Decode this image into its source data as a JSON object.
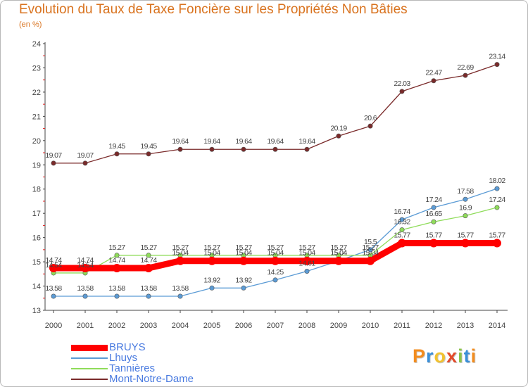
{
  "chart_data": {
    "type": "line",
    "title": "Evolution du Taux de Taxe Foncière sur les Propriétés Non Bâties",
    "ylabel": "(en %)",
    "xlabel": "",
    "ylim": [
      13,
      24
    ],
    "yticks": [
      "13",
      "14",
      "15",
      "16",
      "17",
      "18",
      "19",
      "20",
      "21",
      "22",
      "23",
      "24"
    ],
    "categories": [
      "2000",
      "2001",
      "2002",
      "2003",
      "2004",
      "2005",
      "2006",
      "2007",
      "2008",
      "2009",
      "2010",
      "2011",
      "2012",
      "2013",
      "2014"
    ],
    "series": [
      {
        "name": "BRUYS",
        "color": "#ff0000",
        "values": [
          14.74,
          14.74,
          14.74,
          14.74,
          15.04,
          15.04,
          15.04,
          15.04,
          15.04,
          15.04,
          15.04,
          15.77,
          15.77,
          15.77,
          15.77
        ],
        "labels": [
          "14.74",
          "14.74",
          "14.74",
          "14.74",
          "15.04",
          "15.04",
          "15.04",
          "15.04",
          "15.04",
          "15.04",
          "15.04",
          "15.77",
          "15.77",
          "15.77",
          "15.77"
        ]
      },
      {
        "name": "Lhuys",
        "color": "#5b9bd5",
        "values": [
          13.58,
          13.58,
          13.58,
          13.58,
          13.58,
          13.92,
          13.92,
          14.25,
          14.61,
          15.04,
          15.5,
          16.74,
          17.24,
          17.58,
          18.02
        ],
        "labels": [
          "13.58",
          "13.58",
          "13.58",
          "13.58",
          "13.58",
          "13.92",
          "13.92",
          "14.25",
          "14.61",
          "15.04",
          "15.5",
          "16.74",
          "17.24",
          "17.58",
          "18.02"
        ]
      },
      {
        "name": "Tannières",
        "color": "#8fdc5a",
        "values": [
          14.54,
          14.54,
          15.27,
          15.27,
          15.27,
          15.27,
          15.27,
          15.27,
          15.27,
          15.27,
          15.27,
          16.32,
          16.65,
          16.9,
          17.24
        ],
        "labels": [
          "14.54",
          "14.54",
          "15.27",
          "15.27",
          "15.27",
          "15.27",
          "15.27",
          "15.27",
          "15.27",
          "15.27",
          "15.27",
          "16.32",
          "16.65",
          "16.9",
          "17.24"
        ]
      },
      {
        "name": "Mont-Notre-Dame",
        "color": "#7a2a2a",
        "values": [
          19.07,
          19.07,
          19.45,
          19.45,
          19.64,
          19.64,
          19.64,
          19.64,
          19.64,
          20.19,
          20.6,
          22.03,
          22.47,
          22.69,
          23.14
        ],
        "labels": [
          "19.07",
          "19.07",
          "19.45",
          "19.45",
          "19.64",
          "19.64",
          "19.64",
          "19.64",
          "19.64",
          "20.19",
          "20.6",
          "22.03",
          "22.47",
          "22.69",
          "23.14"
        ]
      }
    ],
    "grid": false,
    "legend_position": "bottom-left"
  },
  "brand": {
    "letters": [
      "P",
      "r",
      "o",
      "x",
      "i",
      "t",
      "i"
    ],
    "colors": [
      "#f28c1e",
      "#3a8fd8",
      "#f2c230",
      "#e34a2a",
      "#8bc34a",
      "#3a8fd8",
      "#f28c1e"
    ]
  },
  "colors": {
    "title": "#d9731f",
    "axis": "#444444",
    "axis_ticks_red": "#e02020",
    "label_text": "#444444"
  }
}
